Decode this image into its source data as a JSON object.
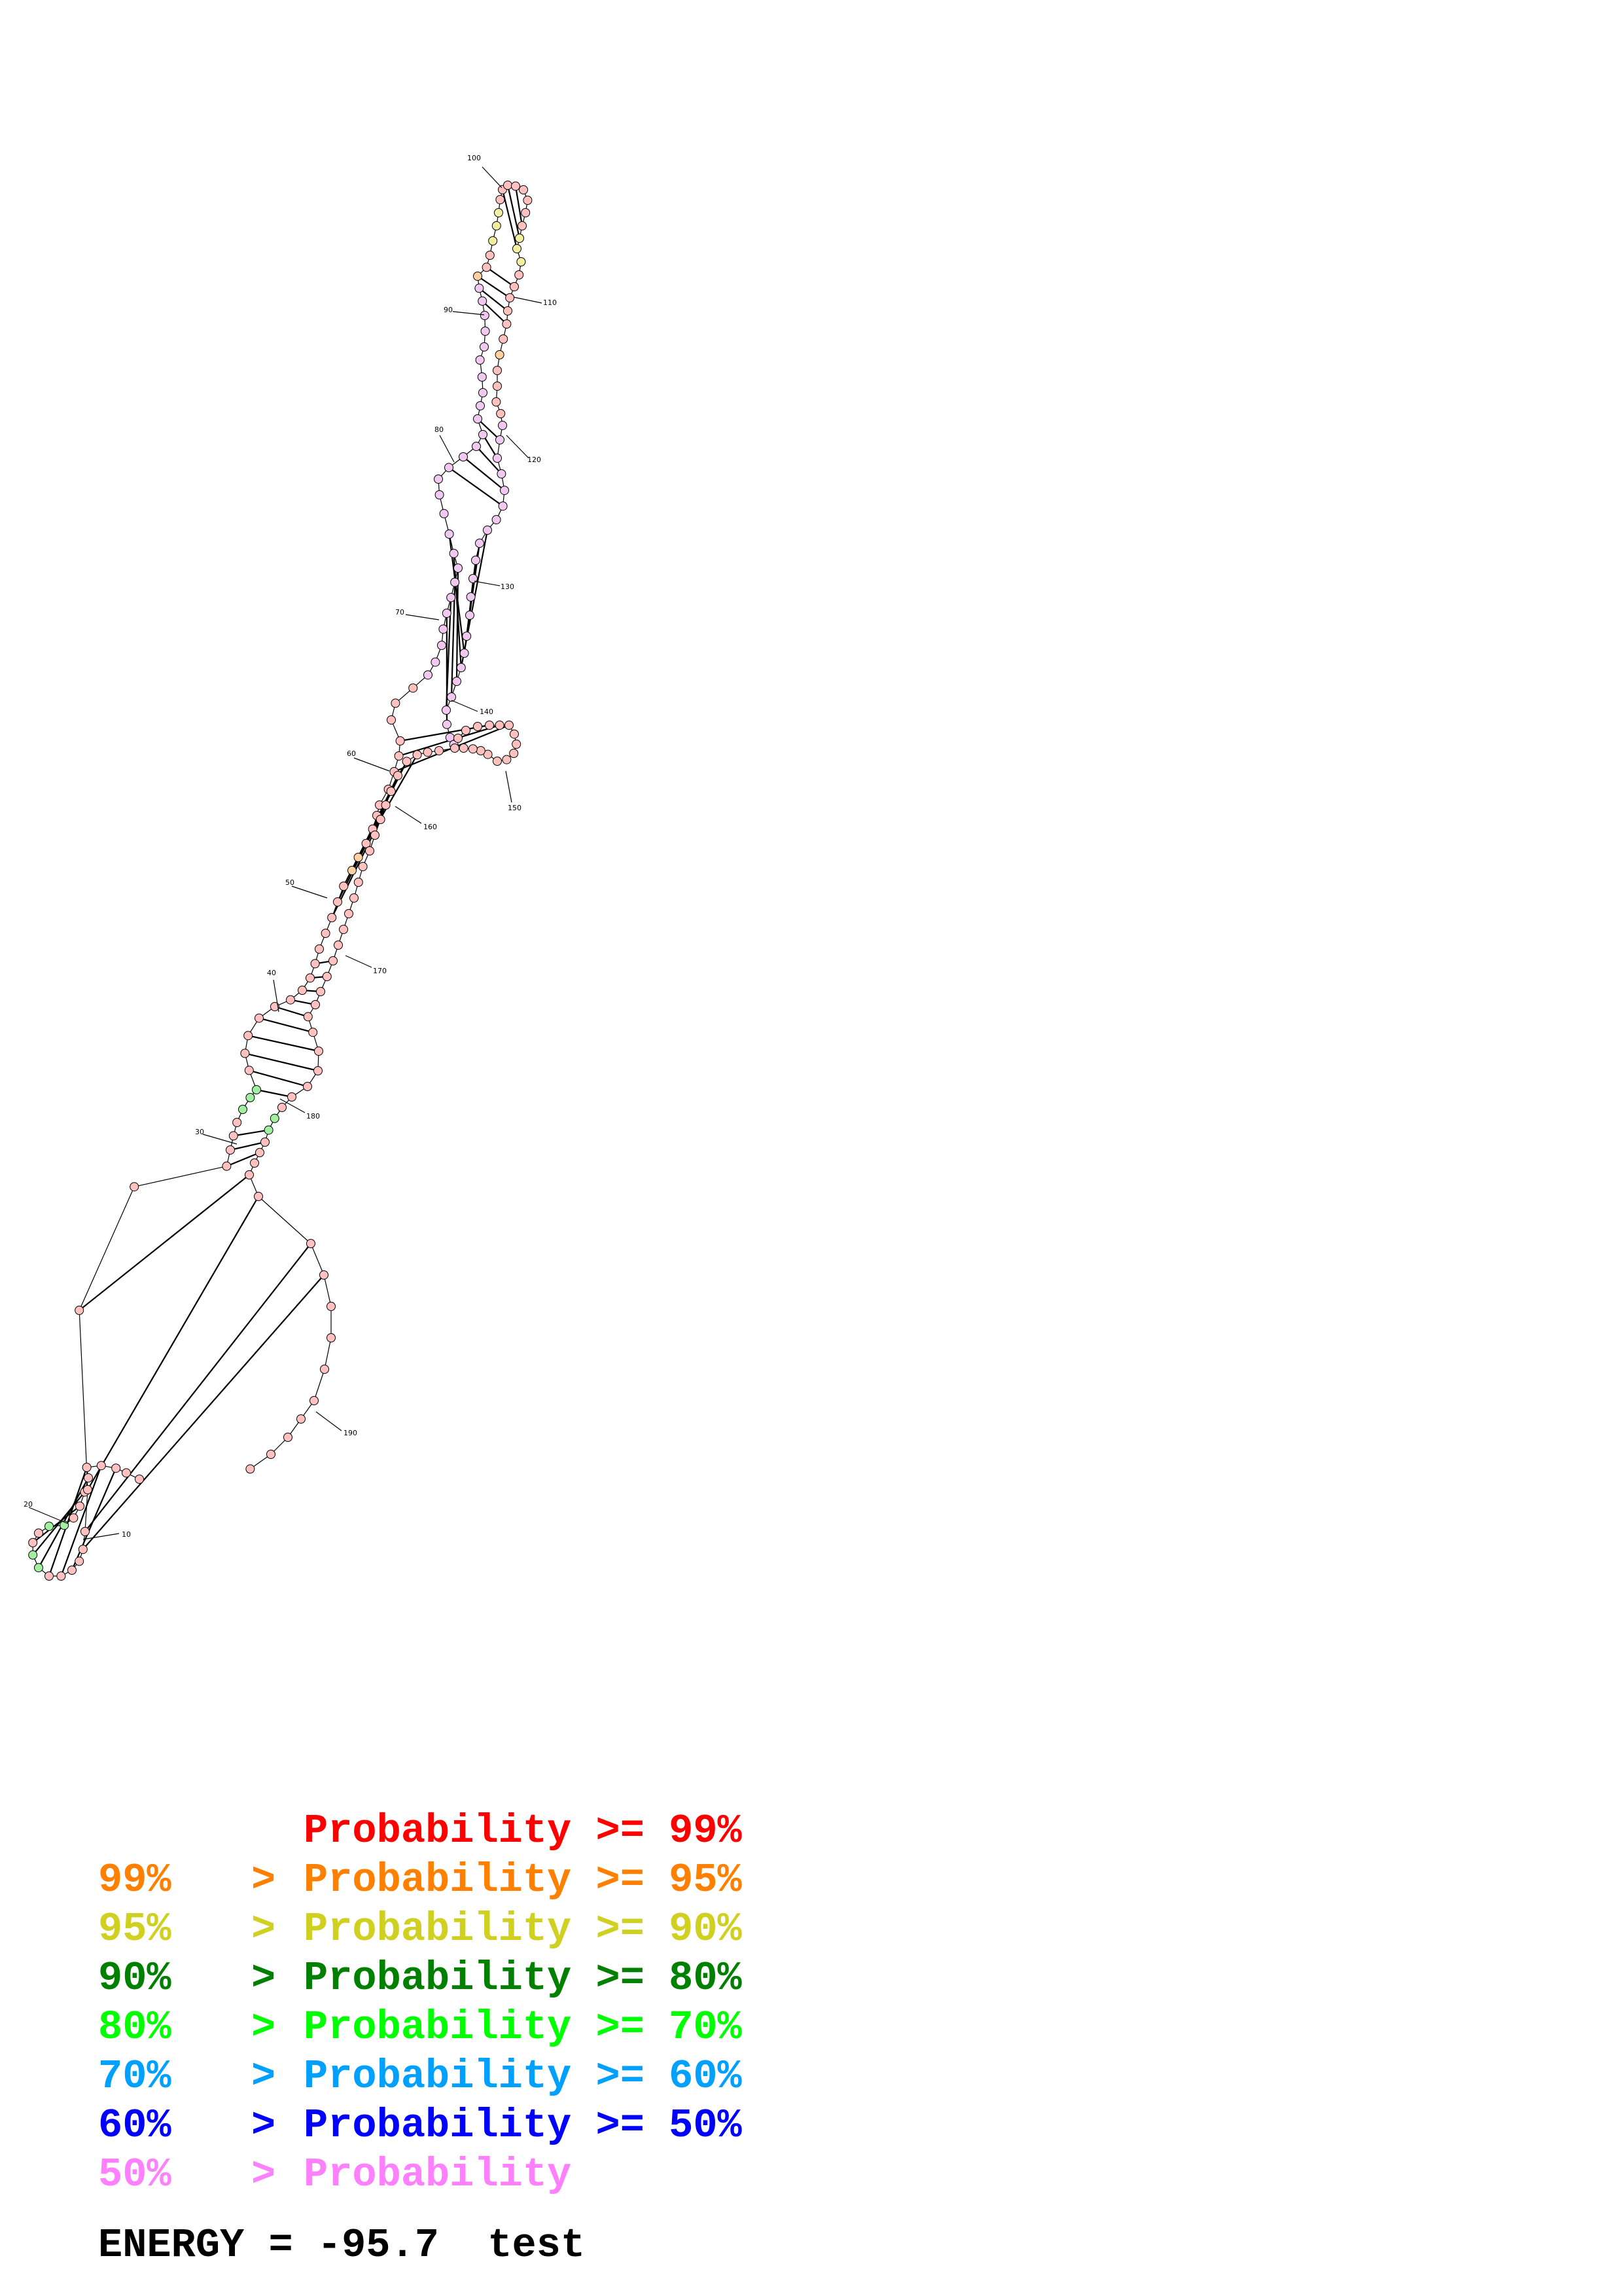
{
  "tick_labels": [
    "10",
    "20",
    "30",
    "40",
    "50",
    "60",
    "70",
    "80",
    "90",
    "100",
    "110",
    "120",
    "130",
    "140",
    "150",
    "160",
    "170",
    "180",
    "190"
  ],
  "legend": [
    {
      "lower": "",
      "gt": "",
      "label": "Probability",
      "op": ">=",
      "upper": "99%",
      "color": "#ff0000"
    },
    {
      "lower": "99%",
      "gt": ">",
      "label": "Probability",
      "op": ">=",
      "upper": "95%",
      "color": "#ff8000"
    },
    {
      "lower": "95%",
      "gt": ">",
      "label": "Probability",
      "op": ">=",
      "upper": "90%",
      "color": "#d0d020"
    },
    {
      "lower": "90%",
      "gt": ">",
      "label": "Probability",
      "op": ">=",
      "upper": "80%",
      "color": "#008000"
    },
    {
      "lower": "80%",
      "gt": ">",
      "label": "Probability",
      "op": ">=",
      "upper": "70%",
      "color": "#00ff00"
    },
    {
      "lower": "70%",
      "gt": ">",
      "label": "Probability",
      "op": ">=",
      "upper": "60%",
      "color": "#00a0ff"
    },
    {
      "lower": "60%",
      "gt": ">",
      "label": "Probability",
      "op": ">=",
      "upper": "50%",
      "color": "#0000ff"
    },
    {
      "lower": "50%",
      "gt": ">",
      "label": "Probability",
      "op": "",
      "upper": "",
      "color": "#ff80ff"
    }
  ],
  "footer": {
    "energy_label": "ENERGY =",
    "energy_value": "-95.7",
    "name": "test"
  },
  "colors": {
    "high": "#ffc0c0",
    "orange": "#ffd0a0",
    "yellow": "#f0f0a0",
    "green": "#a0f0a0",
    "pink": "#f0c8f0",
    "stroke": "#000000"
  }
}
